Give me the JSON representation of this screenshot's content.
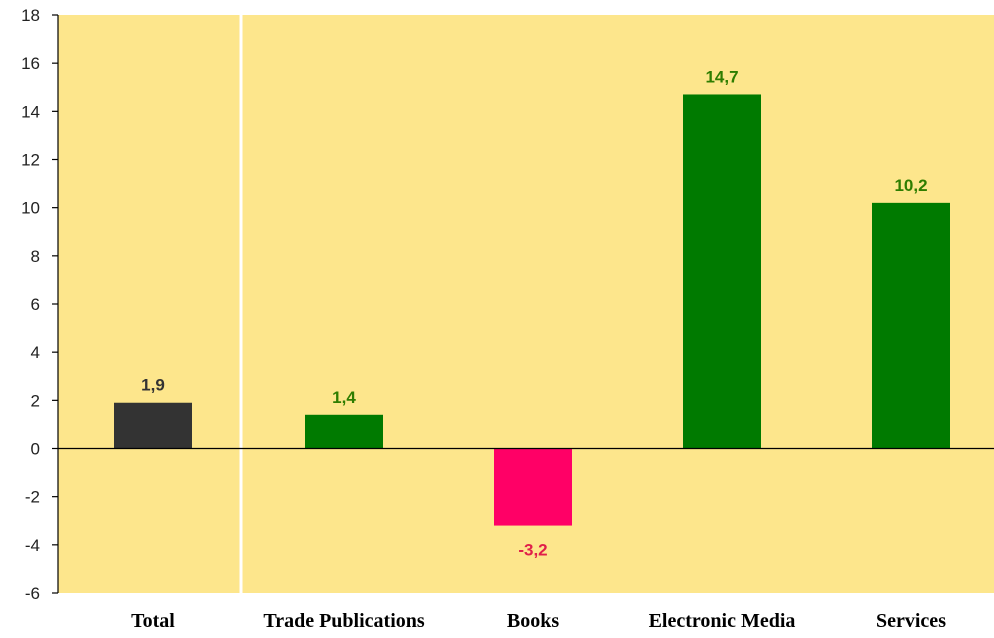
{
  "chart_data": {
    "type": "bar",
    "title": "",
    "xlabel": "",
    "ylabel": "",
    "categories": [
      "Total",
      "Trade Publications",
      "Books",
      "Electronic Media",
      "Services"
    ],
    "values": [
      1.9,
      1.4,
      -3.2,
      14.7,
      10.2
    ],
    "value_labels": [
      "1,9",
      "1,4",
      "-3,2",
      "14,7",
      "10,2"
    ],
    "ylim": [
      -6,
      18
    ],
    "yticks": [
      18,
      16,
      14,
      12,
      10,
      8,
      6,
      4,
      2,
      0,
      -2,
      -4,
      -6
    ],
    "grid": false,
    "legend": "none",
    "colors": {
      "background": "#fde68c",
      "total_bar": "#333333",
      "positive_bar": "#007a00",
      "negative_bar": "#ff0066",
      "total_label": "#333333",
      "positive_label": "#2e7d00",
      "negative_label": "#e0204a",
      "separator": "#ffffff"
    }
  }
}
